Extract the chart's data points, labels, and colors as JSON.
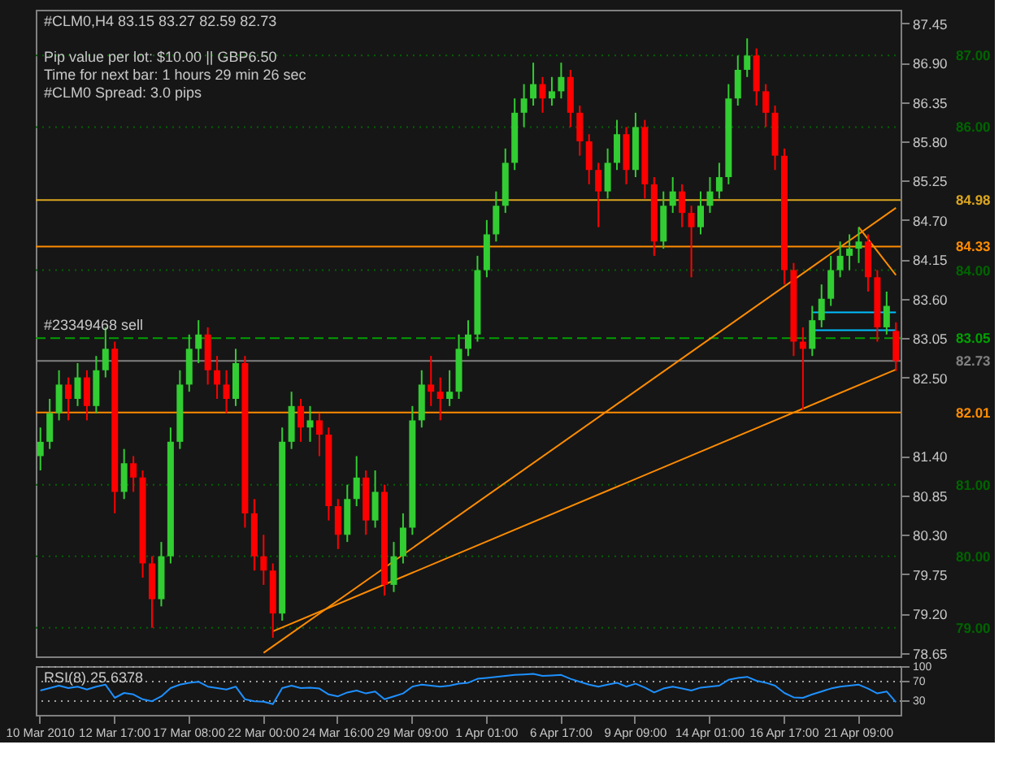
{
  "chart_data": [
    {
      "type": "candlestick",
      "title": "#CLM0,H4  83.15 83.27 82.59 82.73",
      "annotations": [
        "Pip value per lot: $10.00  ||   GBP6.50",
        "Time for next bar: 1 hours 29 min 26 sec",
        "#CLM0 Spread:  3.0 pips",
        {
          "text": "#23349468 sell",
          "y": 83.05
        }
      ],
      "categories": [
        "10 Mar 2010",
        null,
        null,
        null,
        null,
        null,
        null,
        null,
        "12 Mar 17:00",
        null,
        null,
        null,
        null,
        null,
        null,
        null,
        "17 Mar 08:00",
        null,
        null,
        null,
        null,
        null,
        null,
        null,
        "22 Mar 00:00",
        null,
        null,
        null,
        null,
        null,
        null,
        null,
        "24 Mar 16:00",
        null,
        null,
        null,
        null,
        null,
        null,
        null,
        "29 Mar 09:00",
        null,
        null,
        null,
        null,
        null,
        null,
        null,
        "1 Apr 01:00",
        null,
        null,
        null,
        null,
        null,
        null,
        null,
        "6 Apr 17:00",
        null,
        null,
        null,
        null,
        null,
        null,
        null,
        "9 Apr 09:00",
        null,
        null,
        null,
        null,
        null,
        null,
        null,
        "14 Apr 01:00",
        null,
        null,
        null,
        null,
        null,
        null,
        null,
        "16 Apr 17:00",
        null,
        null,
        null,
        null,
        null,
        null,
        null,
        "21 Apr 09:00",
        null,
        null,
        null,
        null
      ],
      "ohlc": [
        [
          81.4,
          81.8,
          81.2,
          81.6
        ],
        [
          81.6,
          82.2,
          81.5,
          82.0
        ],
        [
          82.0,
          82.6,
          81.9,
          82.4
        ],
        [
          82.4,
          82.5,
          81.9,
          82.2
        ],
        [
          82.2,
          82.7,
          82.1,
          82.5
        ],
        [
          82.5,
          82.6,
          81.9,
          82.1
        ],
        [
          82.1,
          82.8,
          82.0,
          82.6
        ],
        [
          82.6,
          83.2,
          82.5,
          82.9
        ],
        [
          82.9,
          83.0,
          80.6,
          80.9
        ],
        [
          80.9,
          81.5,
          80.8,
          81.3
        ],
        [
          81.3,
          81.4,
          80.9,
          81.1
        ],
        [
          81.1,
          81.2,
          79.7,
          79.9
        ],
        [
          79.9,
          80.0,
          79.0,
          79.4
        ],
        [
          79.4,
          80.2,
          79.3,
          80.0
        ],
        [
          80.0,
          81.8,
          79.9,
          81.6
        ],
        [
          81.6,
          82.6,
          81.5,
          82.4
        ],
        [
          82.4,
          83.1,
          82.3,
          82.9
        ],
        [
          82.9,
          83.3,
          82.7,
          83.1
        ],
        [
          83.1,
          83.2,
          82.4,
          82.6
        ],
        [
          82.6,
          82.8,
          82.2,
          82.4
        ],
        [
          82.4,
          82.6,
          82.0,
          82.2
        ],
        [
          82.2,
          82.9,
          82.1,
          82.7
        ],
        [
          82.7,
          82.8,
          80.4,
          80.6
        ],
        [
          80.6,
          80.8,
          79.8,
          80.0
        ],
        [
          80.0,
          80.3,
          79.6,
          79.8
        ],
        [
          79.8,
          79.9,
          78.86,
          79.2
        ],
        [
          79.2,
          81.8,
          79.1,
          81.6
        ],
        [
          81.6,
          82.3,
          81.5,
          82.1
        ],
        [
          82.1,
          82.2,
          81.6,
          81.8
        ],
        [
          81.8,
          82.1,
          81.6,
          81.9
        ],
        [
          81.9,
          82.0,
          81.4,
          81.7
        ],
        [
          81.7,
          81.8,
          80.5,
          80.7
        ],
        [
          80.7,
          80.8,
          80.1,
          80.3
        ],
        [
          80.3,
          81.0,
          80.2,
          80.8
        ],
        [
          80.8,
          81.4,
          80.7,
          81.1
        ],
        [
          81.1,
          81.2,
          80.3,
          80.5
        ],
        [
          80.5,
          81.2,
          80.4,
          80.9
        ],
        [
          80.9,
          81.0,
          79.45,
          79.6
        ],
        [
          79.6,
          80.2,
          79.5,
          80.0
        ],
        [
          80.0,
          80.6,
          79.9,
          80.4
        ],
        [
          80.4,
          82.1,
          80.3,
          81.9
        ],
        [
          81.9,
          82.6,
          81.8,
          82.4
        ],
        [
          82.4,
          82.8,
          82.1,
          82.3
        ],
        [
          82.3,
          82.5,
          81.9,
          82.2
        ],
        [
          82.2,
          82.6,
          82.1,
          82.3
        ],
        [
          82.3,
          83.1,
          82.2,
          82.9
        ],
        [
          82.9,
          83.3,
          82.8,
          83.1
        ],
        [
          83.1,
          84.2,
          83.0,
          84.0
        ],
        [
          84.0,
          84.7,
          83.9,
          84.5
        ],
        [
          84.5,
          85.1,
          84.4,
          84.9
        ],
        [
          84.9,
          85.7,
          84.8,
          85.5
        ],
        [
          85.5,
          86.4,
          85.4,
          86.2
        ],
        [
          86.2,
          86.6,
          86.0,
          86.4
        ],
        [
          86.4,
          86.9,
          86.3,
          86.6
        ],
        [
          86.6,
          86.7,
          86.2,
          86.4
        ],
        [
          86.4,
          86.7,
          86.3,
          86.5
        ],
        [
          86.5,
          86.9,
          86.4,
          86.7
        ],
        [
          86.7,
          86.8,
          86.0,
          86.2
        ],
        [
          86.2,
          86.3,
          85.6,
          85.8
        ],
        [
          85.8,
          85.9,
          85.2,
          85.4
        ],
        [
          85.4,
          85.5,
          84.6,
          85.1
        ],
        [
          85.1,
          85.7,
          85.0,
          85.5
        ],
        [
          85.5,
          86.1,
          85.4,
          85.9
        ],
        [
          85.9,
          86.0,
          85.2,
          85.4
        ],
        [
          85.4,
          86.2,
          85.3,
          86.0
        ],
        [
          86.0,
          86.1,
          85.0,
          85.2
        ],
        [
          85.2,
          85.3,
          84.2,
          84.4
        ],
        [
          84.4,
          85.1,
          84.3,
          84.9
        ],
        [
          84.9,
          85.3,
          84.8,
          85.1
        ],
        [
          85.1,
          85.2,
          84.6,
          84.8
        ],
        [
          84.8,
          84.9,
          83.9,
          84.6
        ],
        [
          84.6,
          85.1,
          84.5,
          84.9
        ],
        [
          84.9,
          85.3,
          84.8,
          85.1
        ],
        [
          85.1,
          85.5,
          85.0,
          85.3
        ],
        [
          85.3,
          86.6,
          85.2,
          86.4
        ],
        [
          86.4,
          87.0,
          86.3,
          86.8
        ],
        [
          86.8,
          87.24,
          86.7,
          87.0
        ],
        [
          87.0,
          87.1,
          86.3,
          86.5
        ],
        [
          86.5,
          86.6,
          86.0,
          86.2
        ],
        [
          86.2,
          86.3,
          85.4,
          85.6
        ],
        [
          85.6,
          85.7,
          83.8,
          84.0
        ],
        [
          84.0,
          84.1,
          82.8,
          83.0
        ],
        [
          83.0,
          83.2,
          82.05,
          82.9
        ],
        [
          82.9,
          83.5,
          82.8,
          83.3
        ],
        [
          83.3,
          83.8,
          83.2,
          83.6
        ],
        [
          83.6,
          84.2,
          83.5,
          84.0
        ],
        [
          84.0,
          84.4,
          83.9,
          84.2
        ],
        [
          84.2,
          84.5,
          84.0,
          84.3
        ],
        [
          84.3,
          84.6,
          84.1,
          84.4
        ],
        [
          84.4,
          84.5,
          83.7,
          83.9
        ],
        [
          83.9,
          84.0,
          83.0,
          83.2
        ],
        [
          83.2,
          83.7,
          83.1,
          83.5
        ],
        [
          83.15,
          83.27,
          82.59,
          82.73
        ]
      ],
      "colors": [
        "#32cd32",
        "#32cd32",
        "#32cd32",
        "#ff0000",
        "#32cd32",
        "#ff0000",
        "#32cd32",
        "#32cd32",
        "#ff0000",
        "#32cd32",
        "#ff0000",
        "#ff0000",
        "#ff0000",
        "#32cd32",
        "#32cd32",
        "#32cd32",
        "#32cd32",
        "#32cd32",
        "#ff0000",
        "#ff0000",
        "#ff0000",
        "#32cd32",
        "#ff0000",
        "#ff0000",
        "#ff0000",
        "#ff0000",
        "#32cd32",
        "#32cd32",
        "#ff0000",
        "#32cd32",
        "#ff0000",
        "#ff0000",
        "#ff0000",
        "#32cd32",
        "#32cd32",
        "#ff0000",
        "#32cd32",
        "#ff0000",
        "#32cd32",
        "#32cd32",
        "#32cd32",
        "#32cd32",
        "#ff0000",
        "#ff0000",
        "#32cd32",
        "#32cd32",
        "#32cd32",
        "#32cd32",
        "#32cd32",
        "#32cd32",
        "#32cd32",
        "#32cd32",
        "#32cd32",
        "#32cd32",
        "#ff0000",
        "#32cd32",
        "#32cd32",
        "#ff0000",
        "#ff0000",
        "#ff0000",
        "#ff0000",
        "#32cd32",
        "#32cd32",
        "#ff0000",
        "#32cd32",
        "#ff0000",
        "#ff0000",
        "#32cd32",
        "#32cd32",
        "#ff0000",
        "#ff0000",
        "#32cd32",
        "#32cd32",
        "#32cd32",
        "#32cd32",
        "#32cd32",
        "#32cd32",
        "#ff0000",
        "#ff0000",
        "#ff0000",
        "#ff0000",
        "#ff0000",
        "#ff0000",
        "#32cd32",
        "#32cd32",
        "#32cd32",
        "#32cd32",
        "#32cd32",
        "#32cd32",
        "#ff0000",
        "#ff0000",
        "#32cd32",
        "#ff0000"
      ],
      "series": [
        {
          "type": "line",
          "color": "#ff8c00",
          "values": [
            null,
            null,
            null,
            null,
            null,
            null,
            null,
            null,
            null,
            null,
            null,
            null,
            null,
            null,
            null,
            null,
            null,
            null,
            null,
            null,
            null,
            null,
            null,
            null,
            78.65,
            null,
            null,
            null,
            null,
            null,
            null,
            null,
            null,
            null,
            null,
            null,
            null,
            null,
            null,
            null,
            null,
            null,
            null,
            null,
            null,
            null,
            null,
            null,
            null,
            null,
            null,
            null,
            null,
            null,
            null,
            null,
            null,
            null,
            null,
            null,
            null,
            null,
            null,
            null,
            null,
            null,
            null,
            null,
            null,
            null,
            null,
            null,
            null,
            null,
            null,
            null,
            null,
            null,
            null,
            null,
            null,
            null,
            null,
            null,
            null,
            null,
            null,
            null,
            null,
            null,
            null,
            null,
            84.87
          ]
        },
        {
          "type": "line",
          "color": "#ff8c00",
          "values": [
            null,
            null,
            null,
            null,
            null,
            null,
            null,
            null,
            null,
            null,
            null,
            null,
            null,
            null,
            null,
            null,
            null,
            null,
            null,
            null,
            null,
            null,
            null,
            null,
            null,
            78.95,
            null,
            null,
            null,
            null,
            null,
            null,
            null,
            null,
            null,
            null,
            null,
            null,
            null,
            null,
            null,
            null,
            null,
            null,
            null,
            null,
            null,
            null,
            null,
            null,
            null,
            null,
            null,
            null,
            null,
            null,
            null,
            null,
            null,
            null,
            null,
            null,
            null,
            null,
            null,
            null,
            null,
            null,
            null,
            null,
            null,
            null,
            null,
            null,
            null,
            null,
            null,
            null,
            null,
            null,
            null,
            null,
            null,
            null,
            null,
            null,
            null,
            null,
            null,
            null,
            null,
            null,
            82.61
          ]
        },
        {
          "type": "line",
          "color": "#ff8c00",
          "values": [
            null,
            null,
            null,
            null,
            null,
            null,
            null,
            null,
            null,
            null,
            null,
            null,
            null,
            null,
            null,
            null,
            null,
            null,
            null,
            null,
            null,
            null,
            null,
            null,
            null,
            null,
            null,
            null,
            null,
            null,
            null,
            null,
            null,
            null,
            null,
            null,
            null,
            null,
            null,
            null,
            null,
            null,
            null,
            null,
            null,
            null,
            null,
            null,
            null,
            null,
            null,
            null,
            null,
            null,
            null,
            null,
            null,
            null,
            null,
            null,
            null,
            null,
            null,
            null,
            null,
            null,
            null,
            null,
            null,
            null,
            null,
            null,
            null,
            null,
            null,
            null,
            null,
            null,
            null,
            null,
            null,
            null,
            null,
            null,
            null,
            null,
            null,
            null,
            84.6,
            null,
            null,
            null,
            83.93
          ]
        },
        {
          "type": "line",
          "color": "#00bfff",
          "values": [
            null,
            null,
            null,
            null,
            null,
            null,
            null,
            null,
            null,
            null,
            null,
            null,
            null,
            null,
            null,
            null,
            null,
            null,
            null,
            null,
            null,
            null,
            null,
            null,
            null,
            null,
            null,
            null,
            null,
            null,
            null,
            null,
            null,
            null,
            null,
            null,
            null,
            null,
            null,
            null,
            null,
            null,
            null,
            null,
            null,
            null,
            null,
            null,
            null,
            null,
            null,
            null,
            null,
            null,
            null,
            null,
            null,
            null,
            null,
            null,
            null,
            null,
            null,
            null,
            null,
            null,
            null,
            null,
            null,
            null,
            null,
            null,
            null,
            null,
            null,
            null,
            null,
            null,
            null,
            null,
            null,
            null,
            null,
            83.41,
            null,
            null,
            null,
            null,
            null,
            null,
            null,
            null,
            83.41
          ]
        },
        {
          "type": "line",
          "color": "#00bfff",
          "values": [
            null,
            null,
            null,
            null,
            null,
            null,
            null,
            null,
            null,
            null,
            null,
            null,
            null,
            null,
            null,
            null,
            null,
            null,
            null,
            null,
            null,
            null,
            null,
            null,
            null,
            null,
            null,
            null,
            null,
            null,
            null,
            null,
            null,
            null,
            null,
            null,
            null,
            null,
            null,
            null,
            null,
            null,
            null,
            null,
            null,
            null,
            null,
            null,
            null,
            null,
            null,
            null,
            null,
            null,
            null,
            null,
            null,
            null,
            null,
            null,
            null,
            null,
            null,
            null,
            null,
            null,
            null,
            null,
            null,
            null,
            null,
            null,
            null,
            null,
            null,
            null,
            null,
            null,
            null,
            null,
            null,
            null,
            null,
            83.16,
            null,
            null,
            null,
            null,
            null,
            null,
            null,
            null,
            83.16
          ]
        }
      ],
      "ref_lines": [
        {
          "axis": "y",
          "value": 87.0,
          "label": "87.00",
          "color": "#006400",
          "line_style": "dotted"
        },
        {
          "axis": "y",
          "value": 86.0,
          "label": "86.00",
          "color": "#006400",
          "line_style": "dotted"
        },
        {
          "axis": "y",
          "value": 84.98,
          "label": "84.98",
          "color": "#daa520",
          "line_style": "solid"
        },
        {
          "axis": "y",
          "value": 84.33,
          "label": "84.33",
          "color": "#ff8c00",
          "line_style": "solid"
        },
        {
          "axis": "y",
          "value": 84.0,
          "label": "84.00",
          "color": "#006400",
          "line_style": "dotted"
        },
        {
          "axis": "y",
          "value": 83.05,
          "label": "83.05",
          "color": "#00a000",
          "line_style": "dashed"
        },
        {
          "axis": "y",
          "value": 82.73,
          "label": "82.73",
          "color": "#808080",
          "line_style": "solid"
        },
        {
          "axis": "y",
          "value": 82.01,
          "label": "82.01",
          "color": "#ff8c00",
          "line_style": "solid"
        },
        {
          "axis": "y",
          "value": 81.0,
          "label": "81.00",
          "color": "#006400",
          "line_style": "dotted"
        },
        {
          "axis": "y",
          "value": 80.0,
          "label": "80.00",
          "color": "#006400",
          "line_style": "dotted"
        },
        {
          "axis": "y",
          "value": 79.0,
          "label": "79.00",
          "color": "#006400",
          "line_style": "dotted"
        }
      ],
      "ylim": [
        78.6,
        87.64
      ],
      "yticks": [
        87.45,
        {
          "value": 86.9,
          "label": "86.90"
        },
        86.35,
        {
          "value": 85.8,
          "label": "85.80"
        },
        85.25,
        {
          "value": 84.7,
          "label": "84.70"
        },
        84.15,
        {
          "value": 83.6,
          "label": "83.60"
        },
        83.05,
        {
          "value": 82.5,
          "label": "82.50"
        },
        {
          "value": 81.4,
          "label": "81.40"
        },
        80.85,
        {
          "value": 80.3,
          "label": "80.30"
        },
        79.75,
        {
          "value": 79.2,
          "label": "79.20"
        },
        78.65
      ],
      "grid": false
    },
    {
      "type": "line",
      "title": "RSI(8) 25.6378",
      "categories": [
        null,
        null,
        null,
        null,
        null,
        null,
        null,
        null,
        null,
        null,
        null,
        null,
        null,
        null,
        null,
        null,
        null,
        null,
        null,
        null,
        null,
        null,
        null,
        null,
        null,
        null,
        null,
        null,
        null,
        null,
        null,
        null,
        null,
        null,
        null,
        null,
        null,
        null,
        null,
        null,
        null,
        null,
        null,
        null,
        null,
        null,
        null,
        null,
        null,
        null,
        null,
        null,
        null,
        null,
        null,
        null,
        null,
        null,
        null,
        null,
        null,
        null,
        null,
        null,
        null,
        null,
        null,
        null,
        null,
        null,
        null,
        null,
        null,
        null,
        null,
        null,
        null,
        null,
        null,
        null,
        null,
        null,
        null,
        null,
        null,
        null,
        null,
        null,
        null,
        null,
        null,
        null,
        null
      ],
      "tick_labels": "y",
      "series": [
        {
          "color": "#1e90ff",
          "values": [
            50,
            55,
            60,
            55,
            58,
            52,
            58,
            62,
            35,
            45,
            42,
            32,
            28,
            38,
            55,
            62,
            66,
            68,
            58,
            55,
            52,
            58,
            32,
            28,
            27,
            22,
            55,
            60,
            55,
            56,
            54,
            42,
            38,
            46,
            50,
            44,
            48,
            32,
            38,
            44,
            58,
            62,
            60,
            58,
            60,
            64,
            66,
            74,
            76,
            78,
            80,
            82,
            83,
            84,
            80,
            81,
            82,
            74,
            68,
            62,
            58,
            62,
            66,
            58,
            64,
            56,
            46,
            54,
            58,
            54,
            50,
            56,
            58,
            60,
            72,
            76,
            78,
            70,
            66,
            60,
            45,
            36,
            35,
            42,
            48,
            54,
            58,
            60,
            62,
            54,
            44,
            48,
            26
          ]
        }
      ],
      "ylim": [
        0,
        100
      ],
      "yticks": [
        100,
        70,
        30
      ],
      "grid": "y"
    }
  ]
}
